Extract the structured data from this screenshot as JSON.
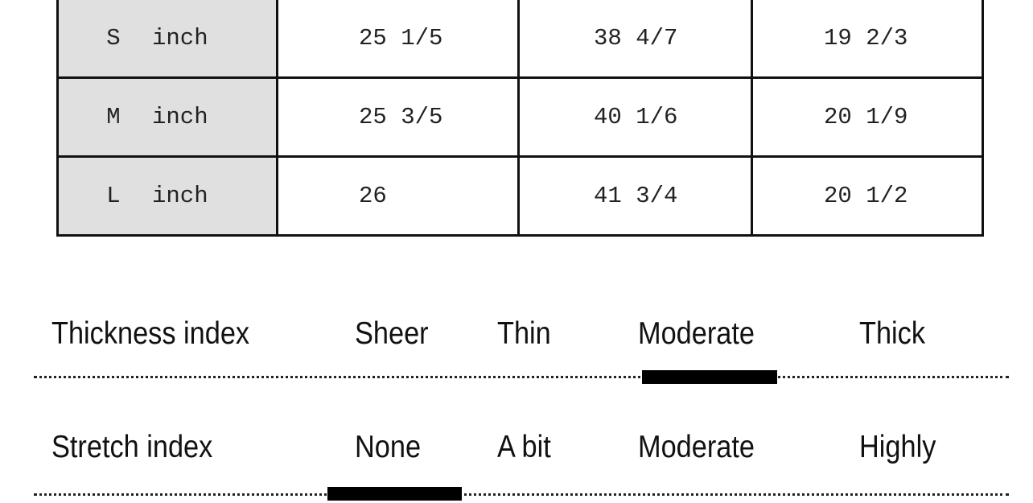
{
  "size_table": {
    "rows": [
      {
        "size": "S",
        "unit": "inch",
        "values": [
          "25 1/5",
          "38 4/7",
          "19 2/3"
        ]
      },
      {
        "size": "M",
        "unit": "inch",
        "values": [
          "25 3/5",
          "40 1/6",
          "20 1/9"
        ]
      },
      {
        "size": "L",
        "unit": "inch",
        "values": [
          "26",
          "41 3/4",
          "20 1/2"
        ]
      }
    ]
  },
  "indices": [
    {
      "label": "Thickness index",
      "options": [
        "Sheer",
        "Thin",
        "Moderate",
        "Thick"
      ],
      "selected": "Moderate"
    },
    {
      "label": "Stretch index",
      "options": [
        "None",
        "A bit",
        "Moderate",
        "Highly"
      ],
      "selected": "None"
    }
  ]
}
